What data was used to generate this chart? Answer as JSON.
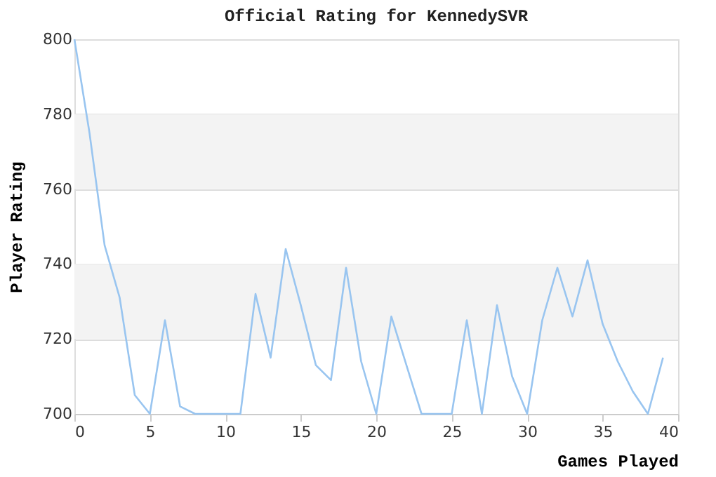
{
  "chart_data": {
    "type": "line",
    "title": "Official Rating for KennedySVR",
    "xlabel": "Games Played",
    "ylabel": "Player Rating",
    "x": [
      0,
      1,
      2,
      3,
      4,
      5,
      6,
      7,
      8,
      9,
      10,
      11,
      12,
      13,
      14,
      15,
      16,
      17,
      18,
      19,
      20,
      21,
      22,
      23,
      24,
      25,
      26,
      27,
      28,
      29,
      30,
      31,
      32,
      33,
      34,
      35,
      36,
      37,
      38,
      39
    ],
    "series": [
      {
        "color": "#99c5f0",
        "values": [
          800,
          775,
          745,
          731,
          705,
          700,
          725,
          702,
          700,
          700,
          700,
          700,
          732,
          715,
          744,
          729,
          713,
          709,
          739,
          714,
          700,
          726,
          713,
          700,
          700,
          700,
          725,
          700,
          729,
          710,
          700,
          725,
          739,
          726,
          741,
          724,
          714,
          706,
          700,
          715
        ]
      }
    ],
    "xlim": [
      0,
      40
    ],
    "xticks": [
      0,
      5,
      10,
      15,
      20,
      25,
      30,
      35,
      40
    ],
    "ylim": [
      700,
      800
    ],
    "yticks": [
      700,
      720,
      740,
      760,
      780,
      800
    ],
    "bands": [
      {
        "axis": "y",
        "from": 720,
        "to": 740,
        "color": "#f3f3f3"
      },
      {
        "axis": "y",
        "from": 760,
        "to": 780,
        "color": "#f3f3f3"
      }
    ],
    "grid": "y",
    "marker": "none",
    "line_style": "solid"
  }
}
